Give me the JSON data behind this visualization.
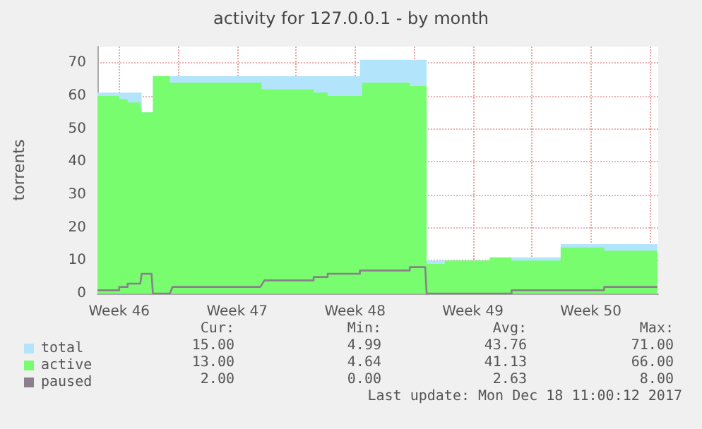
{
  "chart_data": {
    "type": "area",
    "title": "activity for 127.0.0.1 - by month",
    "ylabel": "torrents",
    "xlim": [
      "2017-11-15T05:00",
      "2017-12-18T12:00"
    ],
    "xticks": [
      {
        "value": "2017-11-16T12:00",
        "label": "Week 46"
      },
      {
        "value": "2017-11-20T00:00",
        "label": null
      },
      {
        "value": "2017-11-23T12:00",
        "label": "Week 47"
      },
      {
        "value": "2017-11-27T00:00",
        "label": null
      },
      {
        "value": "2017-11-30T12:00",
        "label": "Week 48"
      },
      {
        "value": "2017-12-04T00:00",
        "label": null
      },
      {
        "value": "2017-12-07T12:00",
        "label": "Week 49"
      },
      {
        "value": "2017-12-11T00:00",
        "label": null
      },
      {
        "value": "2017-12-14T12:00",
        "label": "Week 50"
      },
      {
        "value": "2017-12-18T00:00",
        "label": null
      }
    ],
    "ylim": [
      0,
      75
    ],
    "yticks": [
      0,
      10,
      20,
      30,
      40,
      50,
      60,
      70
    ],
    "grid": true,
    "legend": "bottom",
    "series": [
      {
        "name": "total",
        "color": "#b2e5fc",
        "x": [
          "2017-11-15T05:00",
          "2017-11-17T20:00",
          "2017-11-17T20:00",
          "2017-11-18T12:00",
          "2017-11-18T12:00",
          "2017-11-30T19:00",
          "2017-11-30T19:00",
          "2017-12-04T18:00",
          "2017-12-04T18:00",
          "2017-12-08T12:00",
          "2017-12-08T12:00",
          "2017-12-12T17:00",
          "2017-12-12T17:00",
          "2017-12-18T11:00"
        ],
        "values": [
          61,
          61,
          55,
          55,
          66,
          66,
          71,
          71,
          10,
          10,
          11,
          11,
          15,
          15
        ]
      },
      {
        "name": "active",
        "color": "#77fd6e",
        "x": [
          "2017-11-15T05:00",
          "2017-11-16T12:00",
          "2017-11-16T12:00",
          "2017-11-17T00:00",
          "2017-11-17T00:00",
          "2017-11-17T18:00",
          "2017-11-17T20:00",
          "2017-11-18T12:00",
          "2017-11-18T12:00",
          "2017-11-19T12:00",
          "2017-11-19T12:00",
          "2017-11-24T23:00",
          "2017-11-24T23:00",
          "2017-11-28T01:00",
          "2017-11-28T01:00",
          "2017-11-28T21:00",
          "2017-11-28T21:00",
          "2017-11-30T22:00",
          "2017-11-30T22:00",
          "2017-12-03T18:00",
          "2017-12-03T18:00",
          "2017-12-04T18:00",
          "2017-12-04T18:00",
          "2017-12-05T20:00",
          "2017-12-05T20:00",
          "2017-12-08T12:00",
          "2017-12-08T12:00",
          "2017-12-09T19:00",
          "2017-12-09T19:00",
          "2017-12-12T17:00",
          "2017-12-12T17:00",
          "2017-12-15T07:00",
          "2017-12-15T07:00",
          "2017-12-18T11:00"
        ],
        "values": [
          60,
          60,
          59,
          59,
          58,
          58,
          55,
          55,
          66,
          66,
          64,
          64,
          62,
          62,
          61,
          61,
          60,
          60,
          64,
          64,
          63,
          63,
          9,
          9,
          10,
          10,
          11,
          11,
          10,
          10,
          14,
          14,
          13,
          13
        ]
      },
      {
        "name": "paused",
        "type": "line",
        "color": "#8c7f8c",
        "x": [
          "2017-11-15T05:00",
          "2017-11-16T12:00",
          "2017-11-16T12:00",
          "2017-11-17T00:00",
          "2017-11-17T00:00",
          "2017-11-17T18:00",
          "2017-11-17T20:00",
          "2017-11-18T10:00",
          "2017-11-18T12:00",
          "2017-11-19T12:00",
          "2017-11-19T16:00",
          "2017-11-24T21:00",
          "2017-11-25T03:00",
          "2017-11-28T01:00",
          "2017-11-28T01:00",
          "2017-11-28T21:00",
          "2017-11-28T21:00",
          "2017-11-30T19:00",
          "2017-11-30T19:00",
          "2017-12-03T18:00",
          "2017-12-03T18:00",
          "2017-12-04T16:00",
          "2017-12-04T18:00",
          "2017-12-09T19:00",
          "2017-12-09T19:00",
          "2017-12-15T07:00",
          "2017-12-15T07:00",
          "2017-12-18T11:00"
        ],
        "values": [
          1,
          1,
          2,
          2,
          3,
          3,
          6,
          6,
          0,
          0,
          2,
          2,
          4,
          4,
          5,
          5,
          6,
          6,
          7,
          7,
          8,
          8,
          0,
          0,
          1,
          1,
          2,
          2
        ]
      }
    ],
    "annotations": [
      "Cur:",
      "Min:",
      "Avg:",
      "Max:",
      "15.00",
      "4.99",
      "43.76",
      "71.00",
      "13.00",
      "4.64",
      "41.13",
      "66.00",
      "2.00",
      "0.00",
      "2.63",
      "8.00",
      "Last update: Mon Dec 18 11:00:12 2017"
    ]
  }
}
